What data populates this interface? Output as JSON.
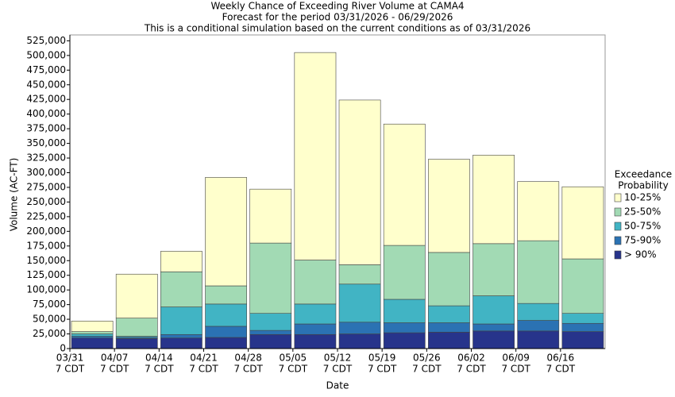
{
  "chart_data": {
    "type": "bar",
    "stacked": true,
    "title": "Weekly Chance of Exceeding River Volume at CAMA4",
    "subtitle": "Forecast for the period 03/31/2026 - 06/29/2026",
    "note": "This is a conditional simulation based on the current conditions as of 03/31/2026",
    "ylabel": "Volume (AC-FT)",
    "xlabel": "Date",
    "categories": [
      "03/31",
      "04/07",
      "04/14",
      "04/21",
      "04/28",
      "05/05",
      "05/12",
      "05/19",
      "05/26",
      "06/02",
      "06/09",
      "06/16"
    ],
    "category_sublabel": "7 CDT",
    "legend_title": [
      "Exceedance",
      "Probability"
    ],
    "series": [
      {
        "name": "> 90%",
        "color": "#27348b",
        "values": [
          18000,
          17000,
          18000,
          19000,
          24000,
          24000,
          25000,
          27000,
          28000,
          30000,
          30000,
          29000
        ]
      },
      {
        "name": "75-90%",
        "color": "#2b72b3",
        "values": [
          3000,
          2000,
          6000,
          19000,
          7000,
          18000,
          20000,
          17000,
          16000,
          12000,
          18000,
          14000
        ]
      },
      {
        "name": "50-75%",
        "color": "#41b4c4",
        "values": [
          4000,
          2000,
          47000,
          38000,
          29000,
          34000,
          65000,
          40000,
          29000,
          48000,
          29000,
          17000
        ]
      },
      {
        "name": "25-50%",
        "color": "#a2dab4",
        "values": [
          4000,
          31000,
          60000,
          31000,
          120000,
          75000,
          33000,
          92000,
          91000,
          89000,
          107000,
          93000
        ]
      },
      {
        "name": "10-25%",
        "color": "#ffffcc",
        "values": [
          18000,
          75000,
          35000,
          185000,
          92000,
          354000,
          281000,
          207000,
          159000,
          151000,
          101000,
          123000
        ]
      }
    ],
    "ylim": [
      0,
      535000
    ],
    "yticks": [
      0,
      {
        "value": 25000,
        "label": "25,000"
      },
      {
        "value": 50000,
        "label": "50,000"
      },
      {
        "value": 75000,
        "label": "75,000"
      },
      {
        "value": 100000,
        "label": "100,000"
      },
      {
        "value": 125000,
        "label": "125,000"
      },
      {
        "value": 150000,
        "label": "150,000"
      },
      {
        "value": 175000,
        "label": "175,000"
      },
      {
        "value": 200000,
        "label": "200,000"
      },
      {
        "value": 225000,
        "label": "225,000"
      },
      {
        "value": 250000,
        "label": "250,000"
      },
      {
        "value": 275000,
        "label": "275,000"
      },
      {
        "value": 300000,
        "label": "300,000"
      },
      {
        "value": 325000,
        "label": "325,000"
      },
      {
        "value": 350000,
        "label": "350,000"
      },
      {
        "value": 375000,
        "label": "375,000"
      },
      {
        "value": 400000,
        "label": "400,000"
      },
      {
        "value": 425000,
        "label": "425,000"
      },
      {
        "value": 450000,
        "label": "450,000"
      },
      {
        "value": 475000,
        "label": "475,000"
      },
      {
        "value": 500000,
        "label": "500,000"
      },
      {
        "value": 525000,
        "label": "525,000"
      }
    ]
  }
}
